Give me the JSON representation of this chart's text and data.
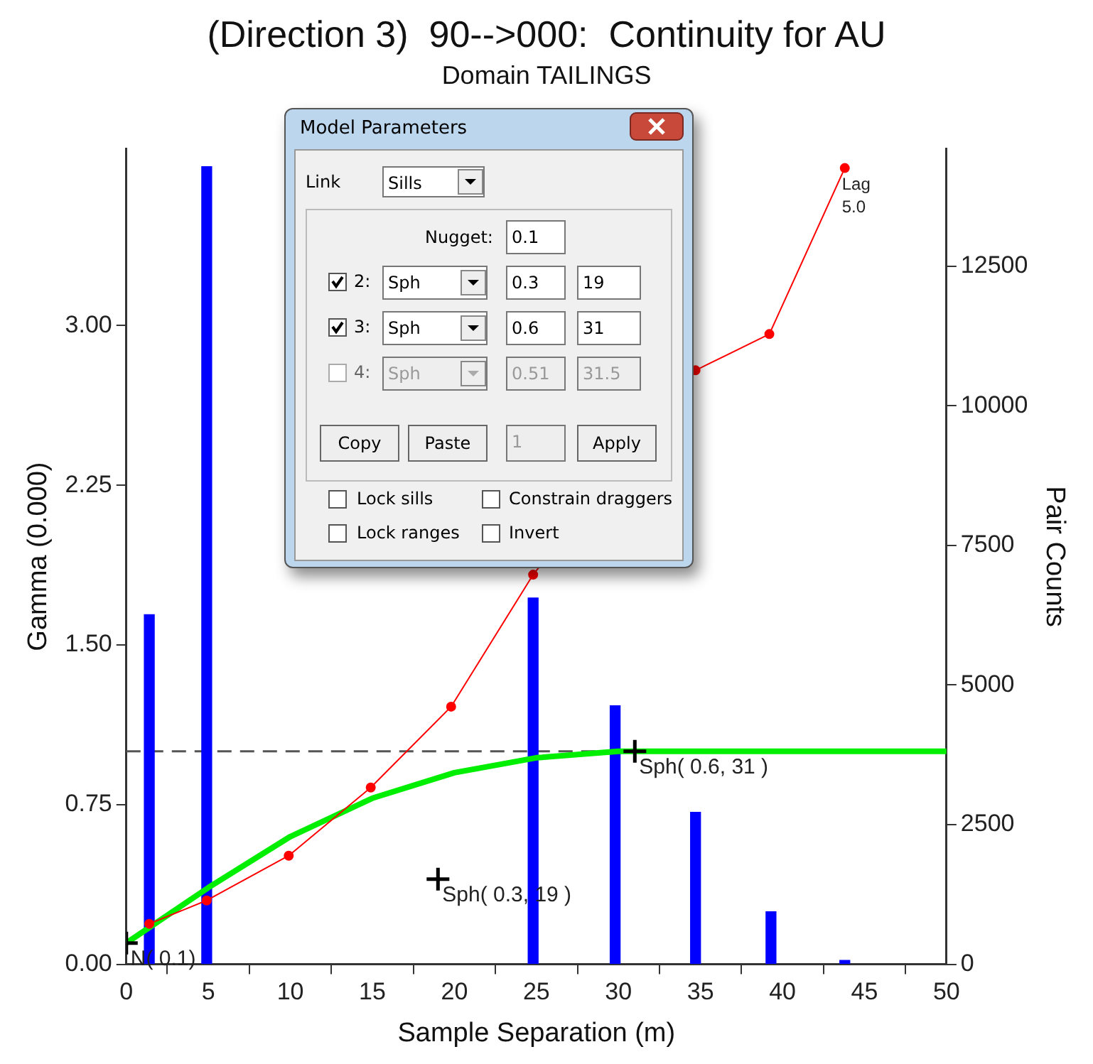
{
  "chart_data": {
    "type": "bar",
    "title": "(Direction 3)  90-->000:  Continuity for AU",
    "subtitle": "Domain TAILINGS",
    "xlabel": "Sample Separation (m)",
    "ylabel": "Gamma (0.000)",
    "y2label": "Pair Counts",
    "xlim": [
      0,
      50
    ],
    "xticks": [
      0,
      5,
      10,
      15,
      20,
      25,
      30,
      35,
      40,
      45,
      50
    ],
    "ylim": [
      0,
      3.83
    ],
    "yticks": [
      {
        "value": 0,
        "label": "0.00"
      },
      {
        "value": 0.75,
        "label": "0.75"
      },
      {
        "value": 1.5,
        "label": "1.50"
      },
      {
        "value": 2.25,
        "label": "2.25"
      },
      {
        "value": 3,
        "label": "3.00"
      }
    ],
    "y2lim": [
      0,
      14600
    ],
    "y2ticks": [
      0,
      2500,
      5000,
      7500,
      10000,
      12500
    ],
    "grid": false,
    "legend": false,
    "series": [
      {
        "axis": "y2",
        "color": "#0000ff",
        "x": [
          1.4,
          4.9,
          9.9,
          14.9,
          19.8,
          24.8,
          29.8,
          34.7,
          39.3,
          43.8
        ],
        "values": [
          6260,
          14280,
          null,
          null,
          null,
          6560,
          4630,
          2720,
          940,
          70
        ]
      },
      {
        "type": "line",
        "color": "#ff0000",
        "marker": "circle",
        "x": [
          1.4,
          4.9,
          9.9,
          14.9,
          19.8,
          24.8,
          29.8,
          34.7,
          39.2,
          43.8
        ],
        "values": [
          0.19,
          0.3,
          0.51,
          0.83,
          1.21,
          1.83,
          null,
          2.79,
          2.96,
          3.74
        ]
      },
      {
        "type": "line",
        "color": "#00ee00",
        "marker": "none",
        "x": [
          0,
          5,
          10,
          15,
          20,
          25,
          30,
          50
        ],
        "values": [
          0.1,
          0.36,
          0.6,
          0.78,
          0.9,
          0.97,
          1.0,
          1.0
        ]
      },
      {
        "type": "scatter",
        "color": "#000000",
        "marker": "cross",
        "x": [
          0,
          19,
          31
        ],
        "values": [
          0.1,
          0.4,
          1.0
        ]
      }
    ],
    "ref_lines": [
      {
        "axis": "y",
        "value": 1.0,
        "color": "#555555",
        "line_style": "dashed"
      }
    ],
    "annotations": [
      {
        "text": "N( 0.1)",
        "x": 0,
        "y": 0.1
      },
      {
        "text": "Sph( 0.3, 19 )",
        "x": 19,
        "y": 0.4
      },
      {
        "text": "Sph( 0.6, 31 )",
        "x": 31,
        "y": 1.0
      },
      {
        "text": "Lag\n5.0",
        "x": 43.8,
        "y": 3.74
      },
      "Model Parameters",
      "Link",
      "Sills",
      "Nugget:",
      "0.1",
      "2:",
      "Sph",
      "0.3",
      "19",
      "3:",
      "Sph",
      "0.6",
      "31",
      "4:",
      "Sph",
      "0.51",
      "31.5",
      "Copy",
      "Paste",
      "1",
      "Apply",
      "Lock sills",
      "Constrain draggers",
      "Lock ranges",
      "Invert"
    ]
  }
}
